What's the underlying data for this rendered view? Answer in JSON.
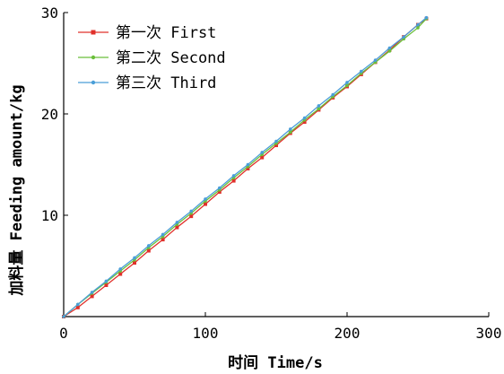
{
  "chart_data": {
    "type": "line",
    "xlabel": "时间 Time/s",
    "ylabel": "加料量 Feeding amount/kg",
    "xlim": [
      0,
      300
    ],
    "ylim": [
      0,
      30
    ],
    "xticks": [
      0,
      100,
      200,
      300
    ],
    "yticks": [
      10,
      20,
      30
    ],
    "grid": false,
    "legend_position": "top-left",
    "x": [
      0,
      10,
      20,
      30,
      40,
      50,
      60,
      70,
      80,
      90,
      100,
      110,
      120,
      130,
      140,
      150,
      160,
      170,
      180,
      190,
      200,
      210,
      220,
      230,
      240,
      250,
      256
    ],
    "series": [
      {
        "name": "第一次 First",
        "color": "#e0302a",
        "marker": "square",
        "values": [
          0,
          0.9,
          2.0,
          3.1,
          4.2,
          5.3,
          6.5,
          7.6,
          8.8,
          9.9,
          11.1,
          12.3,
          13.4,
          14.6,
          15.7,
          16.9,
          18.1,
          19.2,
          20.4,
          21.6,
          22.7,
          23.9,
          25.1,
          26.3,
          27.6,
          28.8,
          29.4
        ]
      },
      {
        "name": "第二次 Second",
        "color": "#6abf3a",
        "marker": "dot",
        "values": [
          0,
          1.2,
          2.3,
          3.4,
          4.5,
          5.6,
          6.8,
          7.9,
          9.1,
          10.2,
          11.4,
          12.5,
          13.7,
          14.8,
          16.0,
          17.1,
          18.2,
          19.4,
          20.5,
          21.7,
          22.8,
          24.0,
          25.1,
          26.2,
          27.4,
          28.5,
          29.4
        ]
      },
      {
        "name": "第三次 Third",
        "color": "#4a9ed8",
        "marker": "dot",
        "values": [
          0,
          1.2,
          2.4,
          3.5,
          4.7,
          5.8,
          7.0,
          8.1,
          9.3,
          10.4,
          11.6,
          12.7,
          13.9,
          15.0,
          16.2,
          17.3,
          18.5,
          19.6,
          20.8,
          21.9,
          23.1,
          24.2,
          25.3,
          26.5,
          27.6,
          28.8,
          29.5
        ]
      }
    ]
  }
}
